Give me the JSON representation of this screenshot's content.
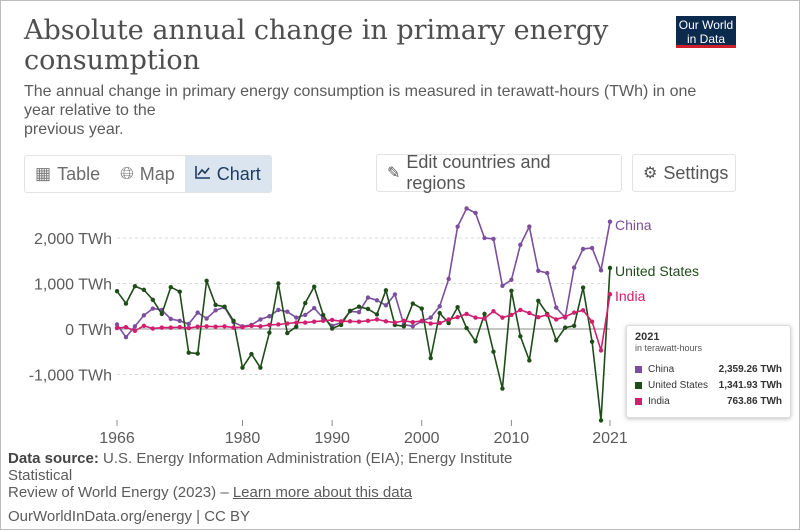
{
  "header": {
    "title": "Absolute annual change in primary energy consumption",
    "subtitle_line1": "The annual change in primary energy consumption is measured in terawatt-hours (TWh) in one",
    "subtitle_line2": "year relative to the",
    "subtitle_line3": "previous year.",
    "logo_line1": "Our World",
    "logo_line2": "in Data"
  },
  "tabs": [
    {
      "label": "Table",
      "icon": "table-icon"
    },
    {
      "label": "Map",
      "icon": "globe-icon"
    },
    {
      "label": "Chart",
      "icon": "line-chart-icon",
      "active": true
    }
  ],
  "toolbar": {
    "edit_label": "Edit countries and regions",
    "settings_label": "Settings"
  },
  "colors": {
    "China": "#7b4f9d",
    "United States": "#1f4d1a",
    "India": "#d01f6e"
  },
  "chart_data": {
    "type": "line",
    "title": "Absolute annual change in primary energy consumption",
    "ylabel": "TWh",
    "ylim": [
      -2000,
      2800
    ],
    "y_ticks": [
      {
        "value": 2000,
        "label": "2,000 TWh"
      },
      {
        "value": 1000,
        "label": "1,000 TWh"
      },
      {
        "value": 0,
        "label": "0 TWh"
      },
      {
        "value": -1000,
        "label": "-1,000 TWh"
      }
    ],
    "x_ticks": [
      1966,
      1980,
      1990,
      2000,
      2010,
      2021
    ],
    "x": [
      1966,
      1967,
      1968,
      1969,
      1970,
      1971,
      1972,
      1973,
      1974,
      1975,
      1976,
      1977,
      1978,
      1979,
      1980,
      1981,
      1982,
      1983,
      1984,
      1985,
      1986,
      1987,
      1988,
      1989,
      1990,
      1991,
      1992,
      1993,
      1994,
      1995,
      1996,
      1997,
      1998,
      1999,
      2000,
      2001,
      2002,
      2003,
      2004,
      2005,
      2006,
      2007,
      2008,
      2009,
      2010,
      2011,
      2012,
      2013,
      2014,
      2015,
      2016,
      2017,
      2018,
      2019,
      2020,
      2021
    ],
    "series": [
      {
        "name": "China",
        "values": [
          100,
          -180,
          60,
          300,
          450,
          420,
          220,
          180,
          110,
          360,
          230,
          410,
          480,
          150,
          60,
          90,
          210,
          280,
          420,
          380,
          250,
          310,
          460,
          240,
          70,
          140,
          390,
          370,
          690,
          630,
          520,
          760,
          100,
          60,
          170,
          250,
          500,
          1100,
          2250,
          2650,
          2550,
          2000,
          1980,
          950,
          1080,
          1850,
          2250,
          1280,
          1230,
          470,
          250,
          1350,
          1760,
          1780,
          1290,
          2359.26
        ]
      },
      {
        "name": "United States",
        "values": [
          830,
          560,
          940,
          860,
          640,
          330,
          920,
          820,
          -520,
          -540,
          1060,
          530,
          490,
          180,
          -850,
          -550,
          -850,
          -80,
          1000,
          -90,
          50,
          570,
          930,
          310,
          10,
          90,
          400,
          490,
          440,
          320,
          850,
          90,
          60,
          560,
          450,
          -640,
          350,
          130,
          480,
          20,
          -270,
          330,
          -500,
          -1310,
          840,
          -160,
          -690,
          620,
          330,
          -250,
          30,
          70,
          910,
          -280,
          -2010,
          1341.93
        ]
      },
      {
        "name": "India",
        "values": [
          20,
          40,
          -40,
          70,
          10,
          30,
          30,
          40,
          20,
          50,
          60,
          50,
          60,
          30,
          40,
          70,
          60,
          90,
          100,
          120,
          140,
          140,
          160,
          180,
          200,
          170,
          170,
          160,
          180,
          210,
          170,
          140,
          180,
          150,
          180,
          120,
          130,
          210,
          260,
          330,
          250,
          230,
          390,
          250,
          310,
          420,
          350,
          260,
          310,
          210,
          270,
          360,
          410,
          160,
          -470,
          763.86
        ]
      }
    ],
    "end_labels": [
      "China",
      "United States",
      "India"
    ],
    "legend": "right",
    "grid": true
  },
  "tooltip": {
    "year": "2021",
    "unit": "in terawatt-hours",
    "rows": [
      {
        "name": "China",
        "value": "2,359.26 TWh"
      },
      {
        "name": "United States",
        "value": "1,341.93 TWh"
      },
      {
        "name": "India",
        "value": "763.86 TWh"
      }
    ]
  },
  "source": {
    "label": "Data source:",
    "text1": "U.S. Energy Information Administration (EIA); Energy Institute",
    "text2": "Statistical",
    "text3": "Review of World Energy (2023) –",
    "link": "Learn more about this data"
  },
  "footer": {
    "text": "OurWorldInData.org/energy | CC BY"
  }
}
